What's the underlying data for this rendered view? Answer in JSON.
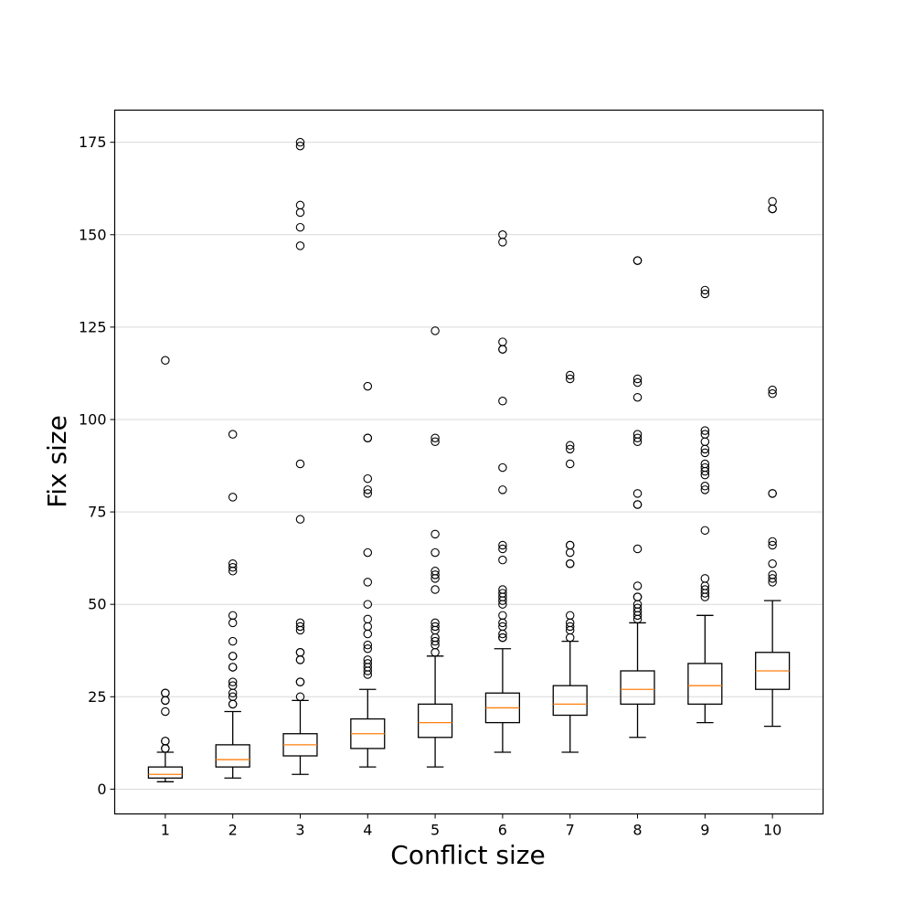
{
  "chart_data": {
    "type": "boxplot",
    "title": "",
    "xlabel": "Conflict size",
    "ylabel": "Fix size",
    "categories": [
      "1",
      "2",
      "3",
      "4",
      "5",
      "6",
      "7",
      "8",
      "9",
      "10"
    ],
    "ylim": [
      -6.7,
      183.7
    ],
    "yticks": [
      0,
      25,
      50,
      75,
      100,
      125,
      150,
      175
    ],
    "ytick_labels": [
      "0",
      "25",
      "50",
      "75",
      "100",
      "125",
      "150",
      "175"
    ],
    "grid": "horizontal",
    "legend": "none",
    "colors": {
      "box": "#000000",
      "median": "#ff7f0e",
      "grid": "#d9d9d9"
    },
    "boxes": [
      {
        "label": "1",
        "whislo": 2,
        "q1": 3,
        "med": 4,
        "q3": 6,
        "whishi": 10,
        "fliers": [
          11,
          11,
          13,
          13,
          21,
          24,
          24,
          26,
          26,
          116
        ]
      },
      {
        "label": "2",
        "whislo": 3,
        "q1": 6,
        "med": 8,
        "q3": 12,
        "whishi": 21,
        "fliers": [
          23,
          23,
          25,
          26,
          28,
          29,
          33,
          33,
          36,
          36,
          40,
          45,
          47,
          59,
          60,
          61,
          79,
          96
        ]
      },
      {
        "label": "3",
        "whislo": 4,
        "q1": 9,
        "med": 12,
        "q3": 15,
        "whishi": 24,
        "fliers": [
          25,
          29,
          29,
          35,
          35,
          37,
          37,
          43,
          44,
          45,
          73,
          88,
          147,
          152,
          156,
          158,
          174,
          175
        ]
      },
      {
        "label": "4",
        "whislo": 6,
        "q1": 11,
        "med": 15,
        "q3": 19,
        "whishi": 27,
        "fliers": [
          31,
          32,
          33,
          34,
          35,
          38,
          39,
          42,
          44,
          46,
          50,
          56,
          64,
          80,
          81,
          84,
          95,
          95,
          109
        ]
      },
      {
        "label": "5",
        "whislo": 6,
        "q1": 14,
        "med": 18,
        "q3": 23,
        "whishi": 36,
        "fliers": [
          37,
          39,
          40,
          41,
          43,
          44,
          45,
          54,
          57,
          58,
          59,
          64,
          69,
          94,
          95,
          124
        ]
      },
      {
        "label": "6",
        "whislo": 10,
        "q1": 18,
        "med": 22,
        "q3": 26,
        "whishi": 38,
        "fliers": [
          41,
          41,
          42,
          44,
          45,
          47,
          50,
          51,
          52,
          53,
          54,
          62,
          65,
          66,
          81,
          87,
          105,
          119,
          119,
          121,
          148,
          150
        ]
      },
      {
        "label": "7",
        "whislo": 10,
        "q1": 20,
        "med": 23,
        "q3": 28,
        "whishi": 40,
        "fliers": [
          41,
          43,
          44,
          45,
          47,
          61,
          61,
          64,
          66,
          66,
          88,
          92,
          93,
          111,
          112
        ]
      },
      {
        "label": "8",
        "whislo": 14,
        "q1": 23,
        "med": 27,
        "q3": 32,
        "whishi": 45,
        "fliers": [
          46,
          47,
          48,
          49,
          50,
          52,
          52,
          55,
          65,
          77,
          77,
          80,
          94,
          95,
          96,
          106,
          110,
          111,
          143,
          143
        ]
      },
      {
        "label": "9",
        "whislo": 18,
        "q1": 23,
        "med": 28,
        "q3": 34,
        "whishi": 47,
        "fliers": [
          52,
          53,
          54,
          55,
          57,
          70,
          81,
          82,
          85,
          86,
          87,
          88,
          91,
          92,
          94,
          96,
          97,
          134,
          135
        ]
      },
      {
        "label": "10",
        "whislo": 17,
        "q1": 27,
        "med": 32,
        "q3": 37,
        "whishi": 51,
        "fliers": [
          56,
          57,
          58,
          61,
          66,
          67,
          80,
          80,
          107,
          108,
          157,
          157,
          159
        ]
      }
    ]
  }
}
